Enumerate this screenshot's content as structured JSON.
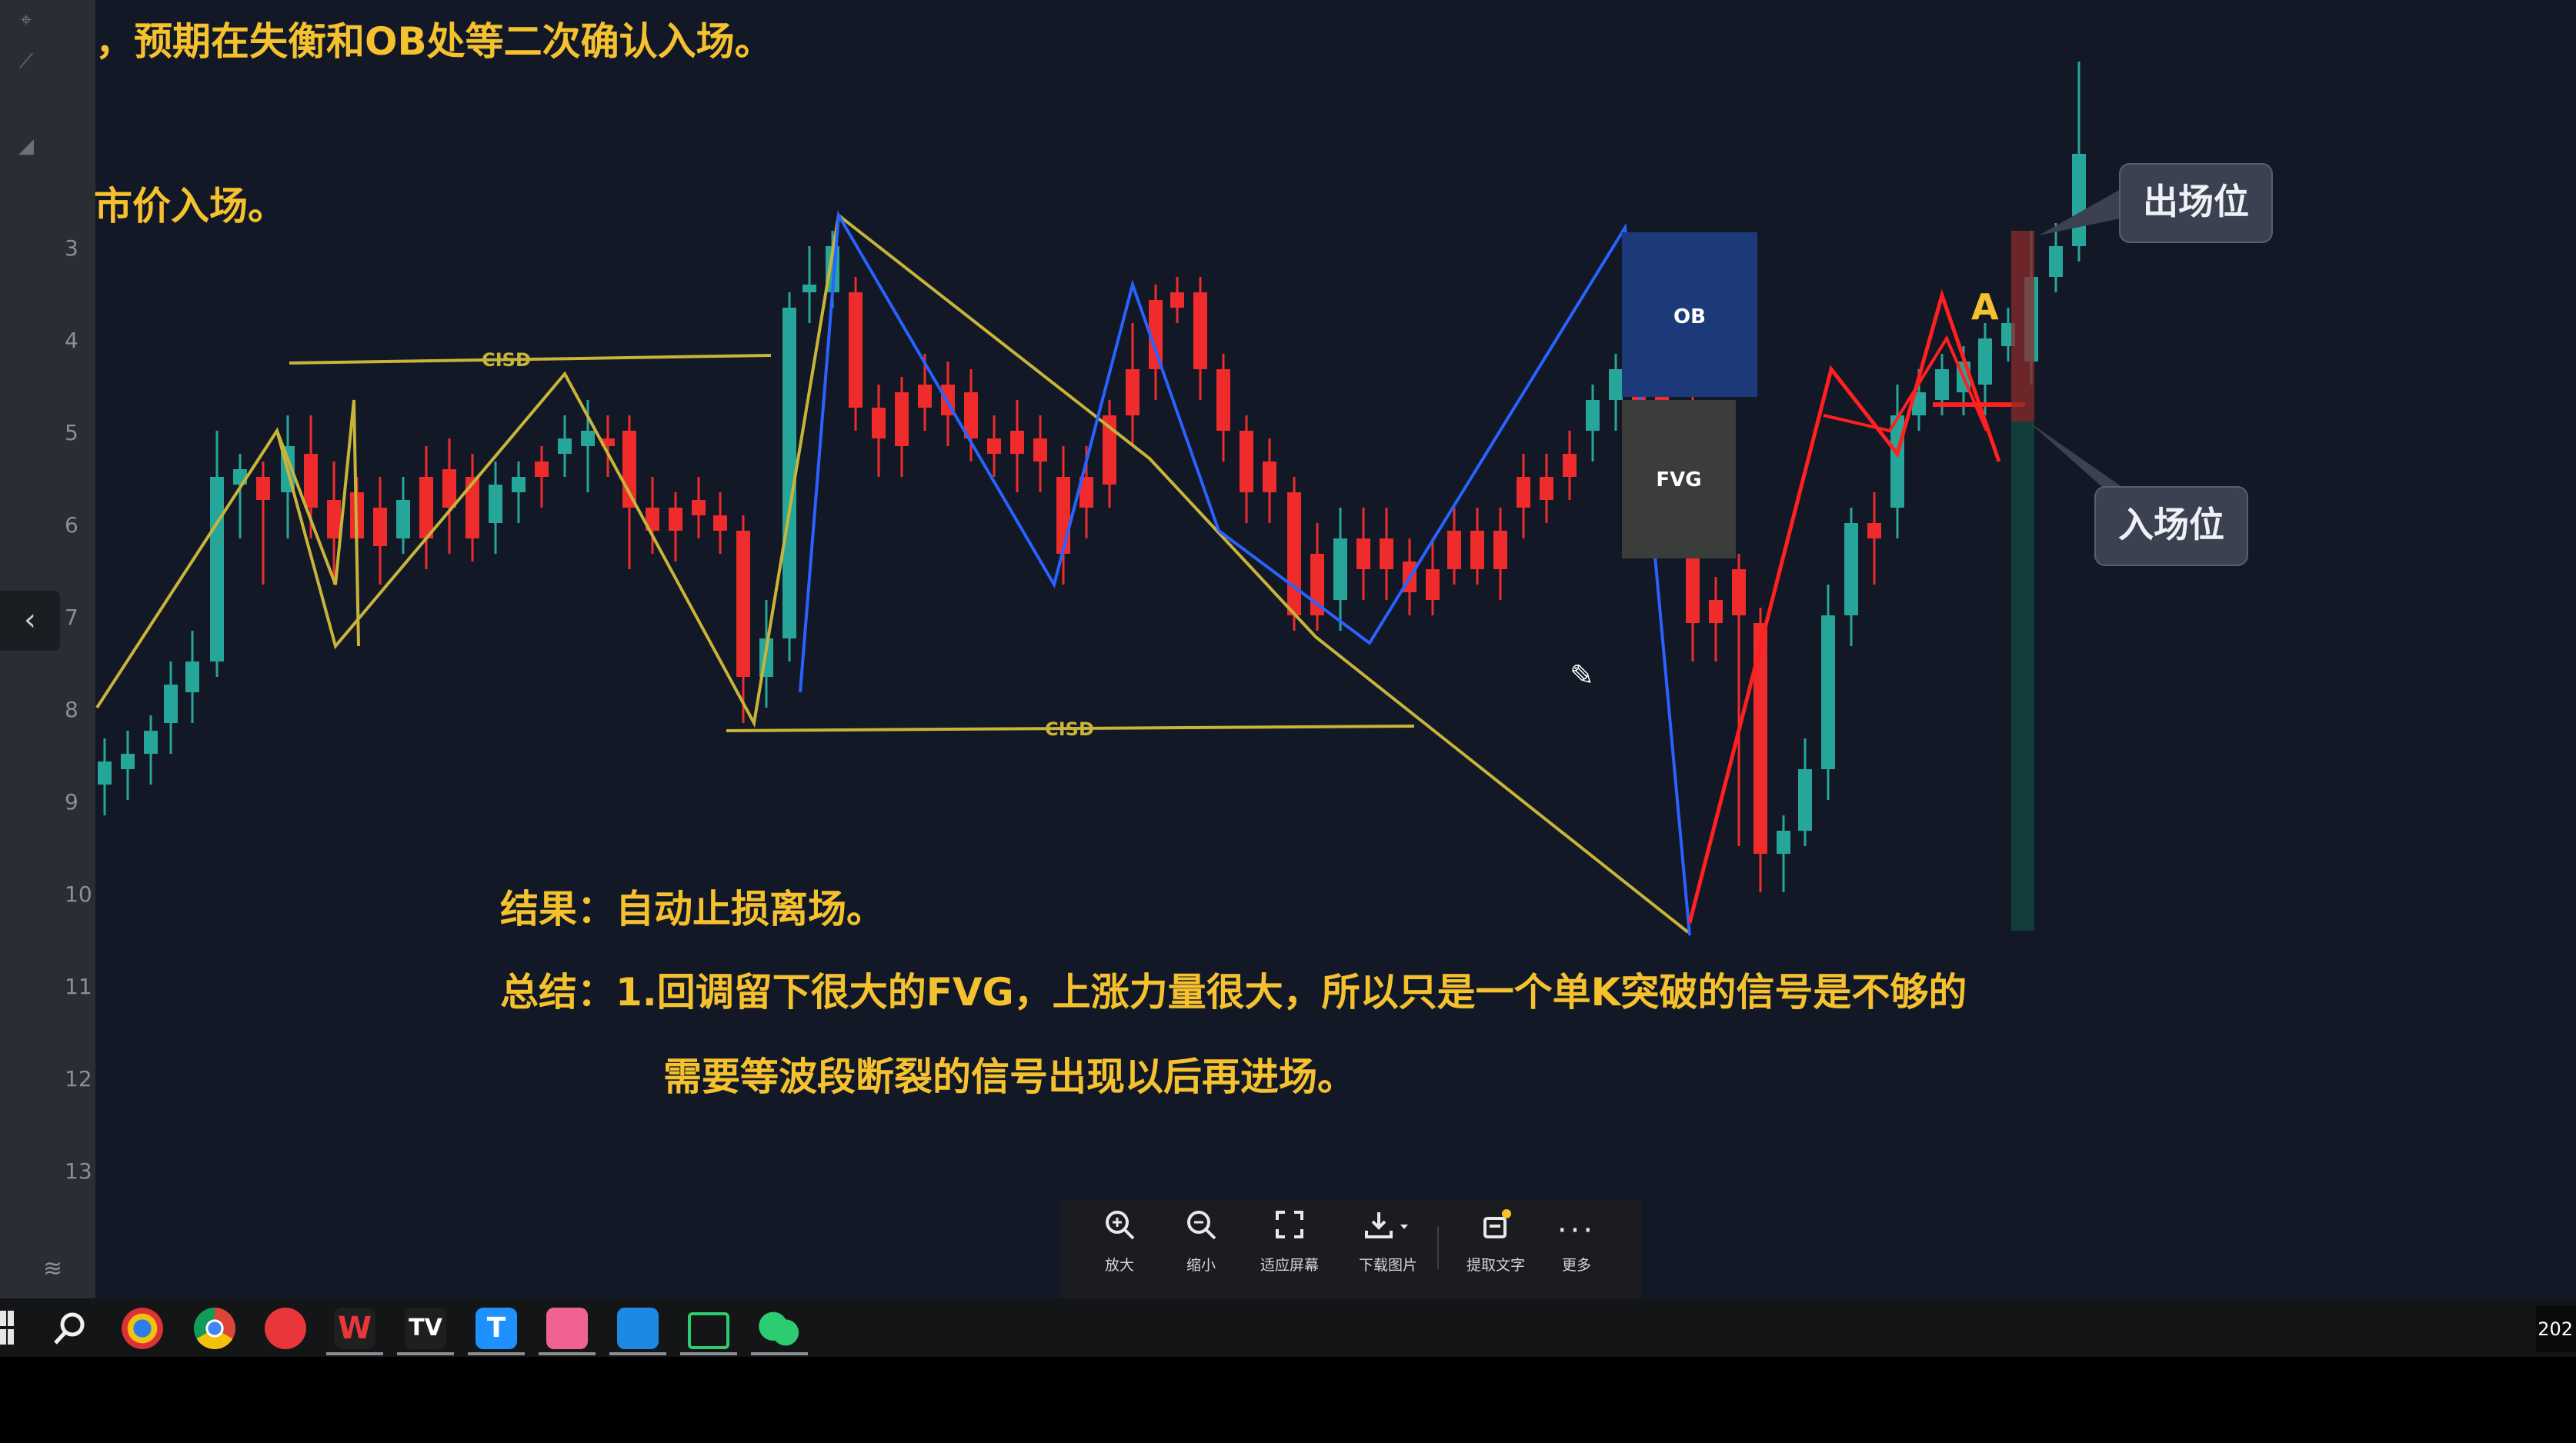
{
  "overlay_texts": {
    "line1": "，预期在失衡和OB处等二次确认入场。",
    "line2": "市价入场。",
    "result": "结果：自动止损离场。",
    "summary_1": "总结：1.回调留下很大的FVG，上涨力量很大，所以只是一个单K突破的信号是不够的",
    "summary_2": "需要等波段断裂的信号出现以后再进场。"
  },
  "chart": {
    "cisd_label_upper": "CISD",
    "cisd_label_lower": "CISD",
    "ob_label": "OB",
    "fvg_label": "FVG",
    "marker_a": "A",
    "exit_label": "出场位",
    "entry_label": "入场位",
    "axis_ticks": [
      "3",
      "4",
      "5",
      "6",
      "7",
      "8",
      "9",
      "10",
      "11",
      "12",
      "13"
    ],
    "colors": {
      "bull": "#26a69a",
      "bear": "#ef2b2b",
      "zigzag_yellow": "#c9b43a",
      "zigzag_blue": "#2962ff",
      "ob_box": "#1c3a7a",
      "fvg_box": "#3a3d3a"
    }
  },
  "viewer_toolbar": {
    "zoom_in": "放大",
    "zoom_out": "缩小",
    "fit_screen": "适应屏幕",
    "download": "下载图片",
    "extract_text": "提取文字",
    "more": "更多"
  },
  "taskbar": {
    "clock": "202",
    "apps": [
      "start-icon",
      "search-icon",
      "browser-icon",
      "chrome-icon",
      "netease-music-icon",
      "wps-icon",
      "tradingview-icon",
      "tencent-icon",
      "bilibili-icon",
      "feishu-icon",
      "screen-app-icon",
      "wechat-icon"
    ]
  }
}
